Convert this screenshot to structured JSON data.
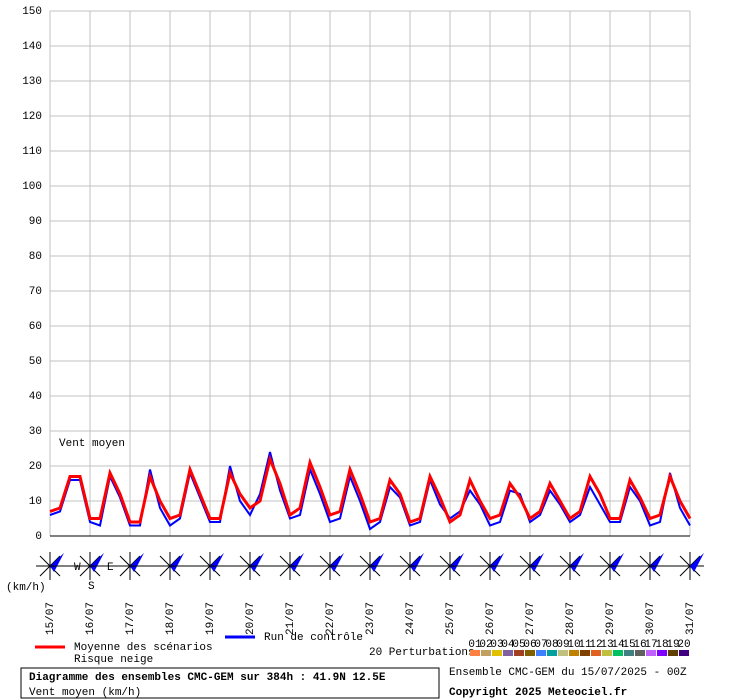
{
  "chart_data": {
    "type": "line",
    "annotation": "Vent moyen",
    "unit_label": "(km/h)",
    "compass": {
      "west": "W",
      "east": "E",
      "south": "S"
    },
    "xlim": [
      0,
      384
    ],
    "xticks": [
      {
        "value": 0,
        "label": "15/07"
      },
      {
        "value": 24,
        "label": "16/07"
      },
      {
        "value": 48,
        "label": "17/07"
      },
      {
        "value": 72,
        "label": "18/07"
      },
      {
        "value": 96,
        "label": "19/07"
      },
      {
        "value": 120,
        "label": "20/07"
      },
      {
        "value": 144,
        "label": "21/07"
      },
      {
        "value": 168,
        "label": "22/07"
      },
      {
        "value": 192,
        "label": "23/07"
      },
      {
        "value": 216,
        "label": "24/07"
      },
      {
        "value": 240,
        "label": "25/07"
      },
      {
        "value": 264,
        "label": "26/07"
      },
      {
        "value": 288,
        "label": "27/07"
      },
      {
        "value": 312,
        "label": "28/07"
      },
      {
        "value": 336,
        "label": "29/07"
      },
      {
        "value": 360,
        "label": "30/07"
      },
      {
        "value": 384,
        "label": "31/07"
      }
    ],
    "ylim": [
      0,
      150
    ],
    "yticks": [
      0,
      10,
      20,
      30,
      40,
      50,
      60,
      70,
      80,
      90,
      100,
      110,
      120,
      130,
      140,
      150
    ],
    "grid": true,
    "x": [
      0,
      6,
      12,
      18,
      24,
      30,
      36,
      42,
      48,
      54,
      60,
      66,
      72,
      78,
      84,
      90,
      96,
      102,
      108,
      114,
      120,
      126,
      132,
      138,
      144,
      150,
      156,
      162,
      168,
      174,
      180,
      186,
      192,
      198,
      204,
      210,
      216,
      222,
      228,
      234,
      240,
      246,
      252,
      258,
      264,
      270,
      276,
      282,
      288,
      294,
      300,
      306,
      312,
      318,
      324,
      330,
      336,
      342,
      348,
      354,
      360,
      366,
      372,
      378,
      384
    ],
    "series": [
      {
        "name": "Moyenne des scénarios",
        "color": "#ff0000",
        "values": [
          7,
          8,
          17,
          17,
          5,
          5,
          18,
          12,
          4,
          4,
          17,
          10,
          5,
          6,
          19,
          12,
          5,
          5,
          18,
          12,
          8,
          10,
          22,
          15,
          6,
          8,
          21,
          14,
          6,
          7,
          19,
          12,
          4,
          5,
          16,
          12,
          4,
          5,
          17,
          11,
          4,
          6,
          16,
          10,
          5,
          6,
          15,
          11,
          5,
          7,
          15,
          10,
          5,
          7,
          17,
          12,
          5,
          5,
          16,
          11,
          5,
          6,
          17,
          10,
          5
        ]
      },
      {
        "name": "Run de contrôle",
        "color": "#0000ff",
        "values": [
          6,
          7,
          16,
          16,
          4,
          3,
          17,
          11,
          3,
          3,
          19,
          8,
          3,
          5,
          18,
          11,
          4,
          4,
          20,
          10,
          6,
          12,
          24,
          13,
          5,
          6,
          19,
          12,
          4,
          5,
          17,
          10,
          2,
          4,
          14,
          11,
          3,
          4,
          16,
          9,
          5,
          7,
          13,
          9,
          3,
          4,
          13,
          12,
          4,
          6,
          13,
          9,
          4,
          6,
          14,
          9,
          4,
          4,
          14,
          10,
          3,
          4,
          18,
          8,
          3
        ]
      }
    ],
    "legend_snow": "Risque neige",
    "perturbations": {
      "label": "20 Perturbations",
      "members": [
        {
          "name": "01",
          "color": "#ff8040"
        },
        {
          "name": "02",
          "color": "#c0a060"
        },
        {
          "name": "03",
          "color": "#e0c000"
        },
        {
          "name": "04",
          "color": "#8060a0"
        },
        {
          "name": "05",
          "color": "#a04020"
        },
        {
          "name": "06",
          "color": "#806000"
        },
        {
          "name": "07",
          "color": "#4080ff"
        },
        {
          "name": "08",
          "color": "#00a0a0"
        },
        {
          "name": "09",
          "color": "#c0c080"
        },
        {
          "name": "10",
          "color": "#c08000"
        },
        {
          "name": "11",
          "color": "#804000"
        },
        {
          "name": "12",
          "color": "#e06020"
        },
        {
          "name": "13",
          "color": "#c0c040"
        },
        {
          "name": "14",
          "color": "#00c060"
        },
        {
          "name": "15",
          "color": "#408080"
        },
        {
          "name": "16",
          "color": "#606060"
        },
        {
          "name": "17",
          "color": "#c060ff"
        },
        {
          "name": "18",
          "color": "#8000ff"
        },
        {
          "name": "19",
          "color": "#604000"
        },
        {
          "name": "20",
          "color": "#400080"
        }
      ]
    },
    "run_info": "Ensemble CMC-GEM du 15/07/2025 - 00Z",
    "footer_title": "Diagramme des ensembles CMC-GEM sur 384h : 41.9N 12.5E",
    "footer_subtitle": "Vent moyen (km/h)",
    "copyright": "Copyright 2025 Meteociel.fr"
  }
}
